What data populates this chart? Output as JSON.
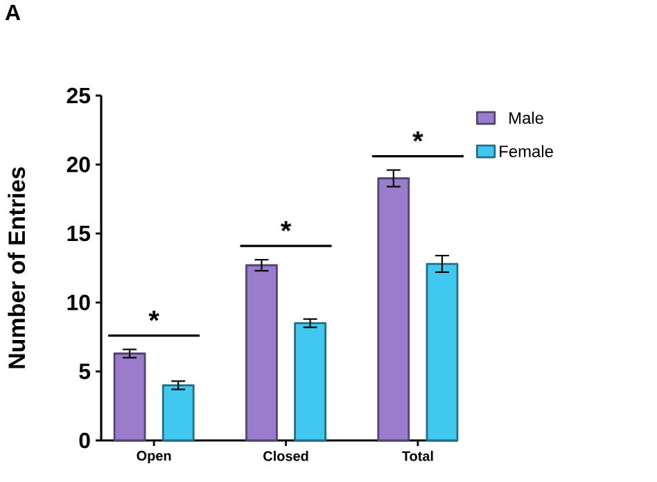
{
  "chart_data": {
    "type": "bar",
    "ylabel": "Number of Entries",
    "categories": [
      "Open",
      "Closed",
      "Total"
    ],
    "series": [
      {
        "name": "Male",
        "color": "#9a7ccc",
        "values": [
          6.3,
          12.7,
          19.0
        ],
        "errors": [
          0.3,
          0.4,
          0.6
        ]
      },
      {
        "name": "Female",
        "color": "#40c8f0",
        "values": [
          4.0,
          8.5,
          12.8
        ],
        "errors": [
          0.3,
          0.3,
          0.6
        ]
      }
    ],
    "ylim": [
      0,
      25
    ],
    "yticks": [
      0,
      5,
      10,
      15,
      20,
      25
    ],
    "grid": false,
    "legend": "top right",
    "annotations": [
      "A",
      "*",
      "*",
      "*"
    ]
  }
}
